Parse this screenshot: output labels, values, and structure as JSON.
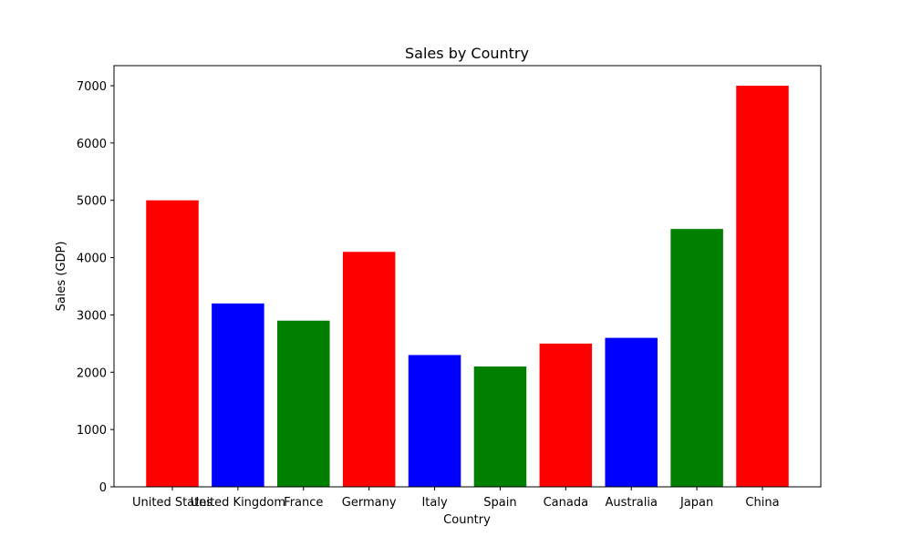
{
  "chart_data": {
    "type": "bar",
    "title": "Sales by Country",
    "xlabel": "Country",
    "ylabel": "Sales (GDP)",
    "categories": [
      "United States",
      "United Kingdom",
      "France",
      "Germany",
      "Italy",
      "Spain",
      "Canada",
      "Australia",
      "Japan",
      "China"
    ],
    "values": [
      5000,
      3200,
      2900,
      4100,
      2300,
      2100,
      2500,
      2600,
      4500,
      7000
    ],
    "bar_colors": [
      "#ff0000",
      "#0000ff",
      "#008000",
      "#ff0000",
      "#0000ff",
      "#008000",
      "#ff0000",
      "#0000ff",
      "#008000",
      "#ff0000"
    ],
    "ylim": [
      0,
      7350
    ],
    "yticks": [
      0,
      1000,
      2000,
      3000,
      4000,
      5000,
      6000,
      7000
    ],
    "ytick_labels": [
      "0",
      "1000",
      "2000",
      "3000",
      "4000",
      "5000",
      "6000",
      "7000"
    ],
    "grid": false,
    "legend": "none"
  }
}
